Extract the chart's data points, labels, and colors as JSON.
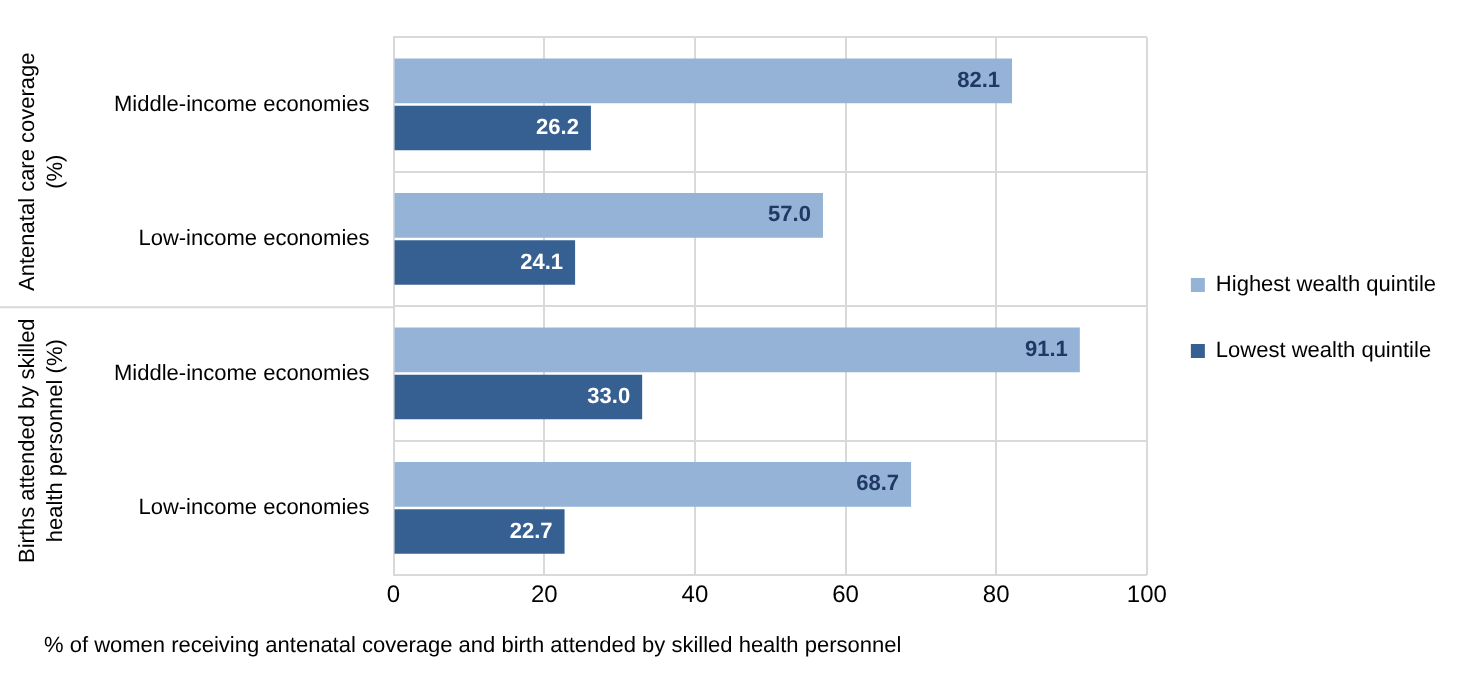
{
  "chart_data": {
    "type": "bar",
    "orientation": "horizontal",
    "xlabel": "% of women receiving antenatal coverage and birth attended by skilled health personnel",
    "categories": [
      "Middle-income economies",
      "Low-income economies",
      "Middle-income economies",
      "Low-income economies"
    ],
    "series": [
      {
        "name": "Highest wealth quintile",
        "color": "#95b3d7",
        "values": [
          82.1,
          57.0,
          91.1,
          68.7
        ],
        "value_labels": [
          "82.1",
          "57.0",
          "91.1",
          "68.7"
        ]
      },
      {
        "name": "Lowest wealth quintile",
        "color": "#366092",
        "values": [
          26.2,
          24.1,
          33.0,
          22.7
        ],
        "value_labels": [
          "26.2",
          "24.1",
          "33.0",
          "22.7"
        ]
      }
    ],
    "xlim": [
      0,
      100
    ],
    "xticks": [
      0,
      20,
      40,
      60,
      80,
      100
    ],
    "grid": true,
    "legend": "right",
    "annotations": [
      "Antenatal care coverage (%)",
      "Births attended by skilled health personnel (%)"
    ]
  }
}
